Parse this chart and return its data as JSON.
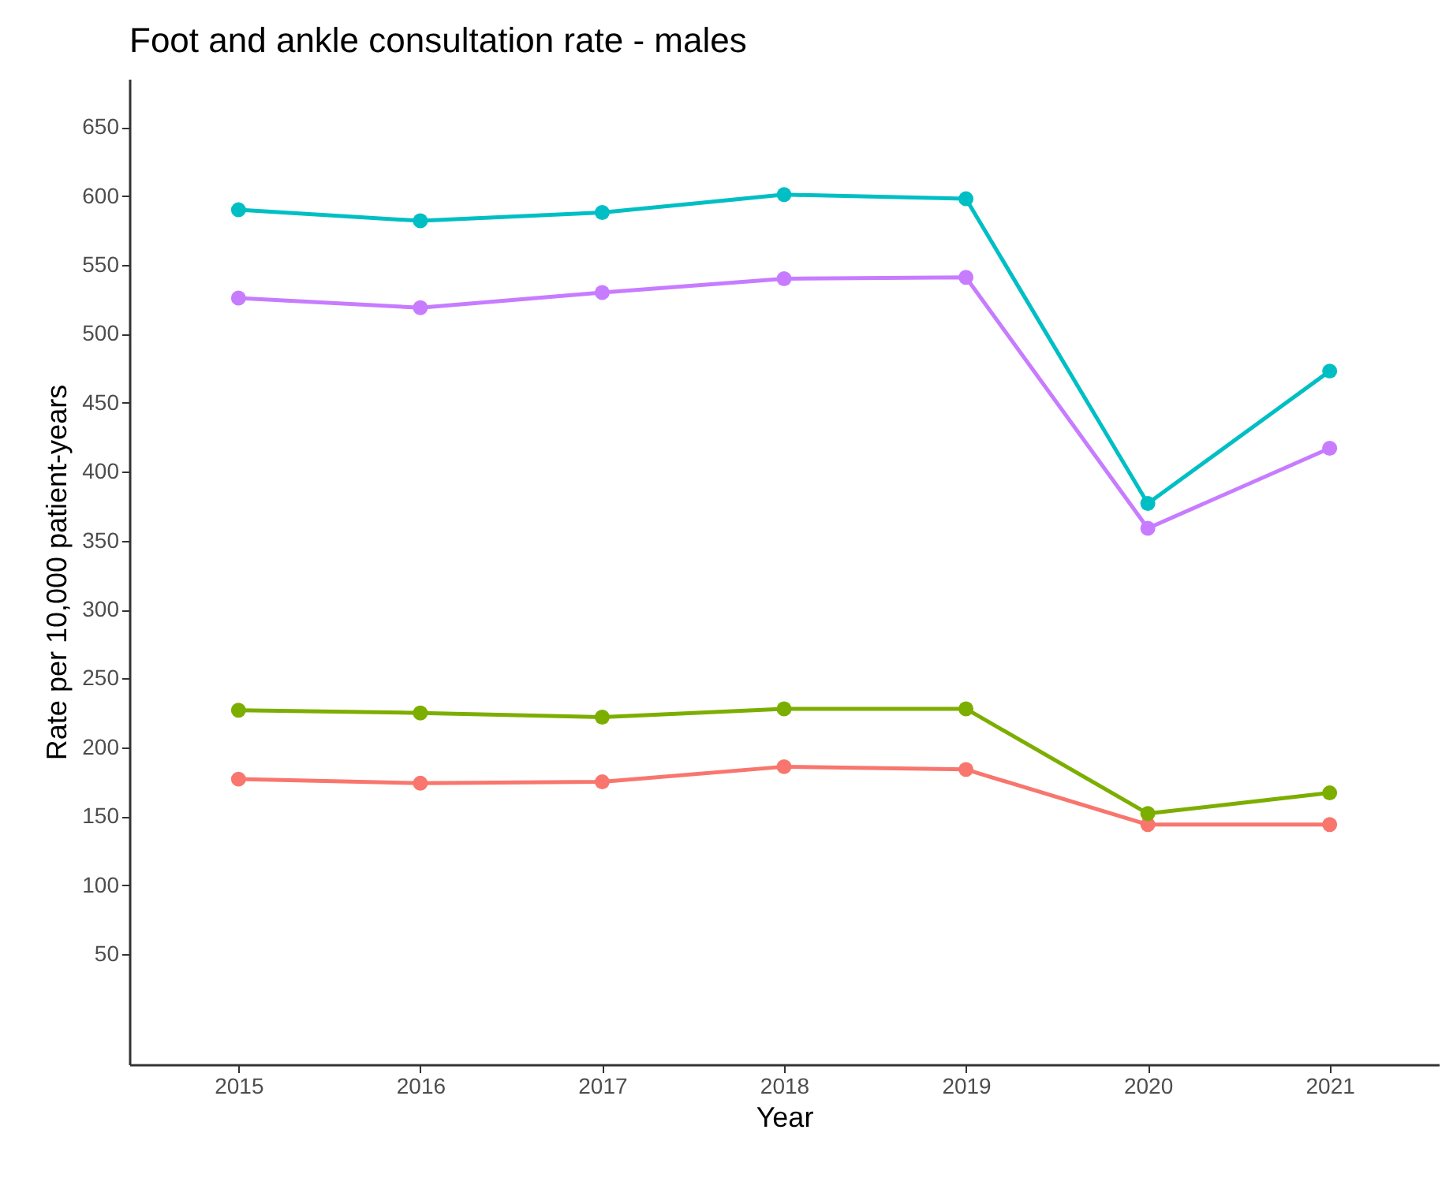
{
  "chart_data": {
    "type": "line",
    "title": "Foot and ankle consultation rate - males",
    "xlabel": "Year",
    "ylabel": "Rate per 10,000 patient-years",
    "x": [
      2015,
      2016,
      2017,
      2018,
      2019,
      2020,
      2021
    ],
    "xlim": [
      2014.4,
      2021.6
    ],
    "xticks": [
      2015,
      2016,
      2017,
      2018,
      2019,
      2020,
      2021
    ],
    "ylim": [
      -30,
      685
    ],
    "yticks": [
      50,
      100,
      150,
      200,
      250,
      300,
      350,
      400,
      450,
      500,
      550,
      600,
      650
    ],
    "grid": false,
    "marker": "circle",
    "line_style": "solid",
    "series": [
      {
        "color": "#f8766d",
        "values": [
          177,
          174,
          175,
          186,
          184,
          144,
          144
        ]
      },
      {
        "color": "#7cae00",
        "values": [
          227,
          225,
          222,
          228,
          228,
          152,
          167
        ]
      },
      {
        "color": "#00bfc4",
        "values": [
          590,
          582,
          588,
          601,
          598,
          377,
          473
        ]
      },
      {
        "color": "#c77cff",
        "values": [
          526,
          519,
          530,
          540,
          541,
          359,
          417
        ]
      }
    ]
  }
}
